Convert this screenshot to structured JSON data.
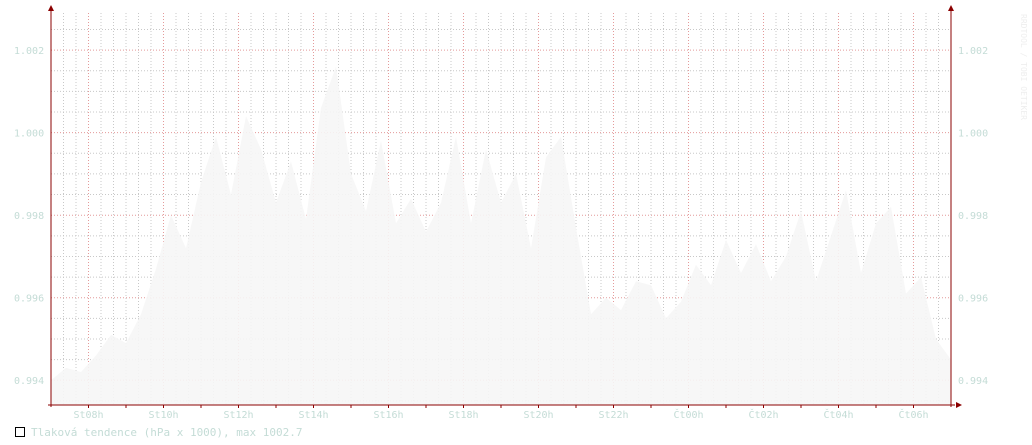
{
  "chart_data": {
    "type": "area",
    "title": "",
    "xlabel": "",
    "ylabel": "",
    "ylim": [
      0.9934,
      1.0029
    ],
    "y_ticks": [
      0.994,
      0.996,
      0.998,
      1.0,
      1.002
    ],
    "y_tick_labels": [
      "0.994",
      "0.996",
      "0.998",
      "1.000",
      "1.002"
    ],
    "x_range": [
      0,
      24
    ],
    "x_ticks": [
      1,
      3,
      5,
      7,
      9,
      11,
      13,
      15,
      17,
      19,
      21,
      23
    ],
    "x_tick_labels": [
      "St08h",
      "St10h",
      "St12h",
      "St14h",
      "St16h",
      "St18h",
      "St20h",
      "St22h",
      "Čt00h",
      "Čt02h",
      "Čt04h",
      "Čt06h"
    ],
    "grid": true,
    "legend_position": "bottom-left",
    "colors": {
      "axis": "#8b0000",
      "grid_minor": "#c8c8c8",
      "grid_major": "#e49a9a",
      "fill": "#f6f6f6",
      "tick_label": "#c4dcd6"
    },
    "series": [
      {
        "name": "Tlaková tendence (hPa x 1000), max 1002.7",
        "x": [
          0,
          0.4,
          0.8,
          1.2,
          1.6,
          2.0,
          2.4,
          2.8,
          3.2,
          3.6,
          4.0,
          4.4,
          4.8,
          5.2,
          5.6,
          6.0,
          6.4,
          6.8,
          7.2,
          7.6,
          8.0,
          8.4,
          8.8,
          9.2,
          9.6,
          10.0,
          10.4,
          10.8,
          11.2,
          11.6,
          12.0,
          12.4,
          12.8,
          13.2,
          13.6,
          14.0,
          14.4,
          14.8,
          15.2,
          15.6,
          16.0,
          16.4,
          16.8,
          17.2,
          17.6,
          18.0,
          18.4,
          18.8,
          19.2,
          19.6,
          20.0,
          20.4,
          20.8,
          21.2,
          21.6,
          22.0,
          22.4,
          22.8,
          23.2,
          23.6,
          24.0
        ],
        "values": [
          0.994,
          0.9943,
          0.9942,
          0.9946,
          0.9951,
          0.9949,
          0.9956,
          0.9967,
          0.998,
          0.9972,
          0.9988,
          0.9999,
          0.9985,
          1.0004,
          0.9996,
          0.9983,
          0.9993,
          0.9979,
          1.0006,
          1.0016,
          0.999,
          0.9981,
          0.9998,
          0.9978,
          0.9984,
          0.9976,
          0.9983,
          0.9999,
          0.9978,
          0.9996,
          0.9983,
          0.999,
          0.9972,
          0.9994,
          0.9999,
          0.9977,
          0.9956,
          0.996,
          0.9957,
          0.9964,
          0.9963,
          0.9955,
          0.9959,
          0.9968,
          0.9963,
          0.9974,
          0.9966,
          0.9973,
          0.9964,
          0.997,
          0.9981,
          0.9964,
          0.9975,
          0.9986,
          0.9966,
          0.9978,
          0.9982,
          0.9961,
          0.9965,
          0.995,
          0.9945
        ]
      }
    ]
  },
  "legend": {
    "label": "Tlaková tendence (hPa x 1000), max 1002.7"
  },
  "watermark": "RRDTOOL / TOBI OETIKER"
}
